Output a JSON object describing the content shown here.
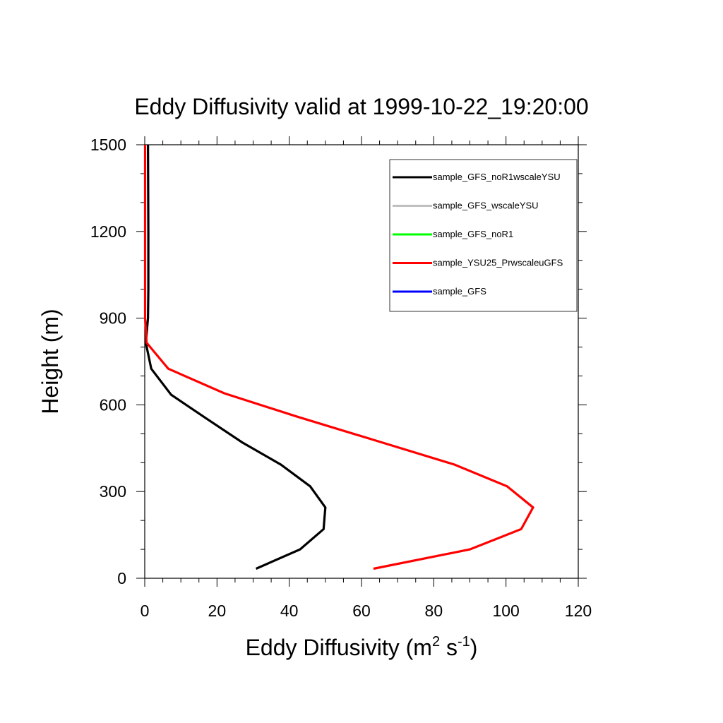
{
  "chart_data": {
    "type": "line",
    "title": "Eddy Diffusivity valid at 1999-10-22_19:20:00",
    "xlabel": "Eddy Diffusivity (m",
    "xlabel_sup1": "2",
    "xlabel_mid": " s",
    "xlabel_sup2": "-1",
    "xlabel_end": ")",
    "ylabel": "Height (m)",
    "xlim": [
      0,
      120
    ],
    "ylim": [
      0,
      1500
    ],
    "x_ticks": [
      0,
      20,
      40,
      60,
      80,
      100,
      120
    ],
    "y_ticks": [
      0,
      300,
      600,
      900,
      1200,
      1500
    ],
    "legend_position": "top-right",
    "series": [
      {
        "name": "sample_GFS_noR1wscaleYSU",
        "color": "#000000",
        "x": [
          30.8,
          43.0,
          49.5,
          50.0,
          45.8,
          37.7,
          27.0,
          17.0,
          7.3,
          1.8,
          0.3,
          0.9,
          1.0,
          1.0,
          0.9
        ],
        "y": [
          33,
          100,
          170,
          245,
          318,
          393,
          470,
          553,
          635,
          725,
          815,
          900,
          1000,
          1200,
          1500
        ]
      },
      {
        "name": "sample_GFS_wscaleYSU",
        "color": "#c0c0c0",
        "x": [],
        "y": []
      },
      {
        "name": "sample_GFS_noR1",
        "color": "#00ff00",
        "x": [],
        "y": []
      },
      {
        "name": "sample_YSU25_PrwscaleuGFS",
        "color": "#ff0000",
        "x": [
          63.3,
          90.0,
          104.2,
          107.5,
          100.3,
          85.8,
          63.0,
          42.0,
          22.0,
          6.5,
          0.5,
          0.1,
          0.1
        ],
        "y": [
          33,
          100,
          170,
          245,
          318,
          393,
          480,
          560,
          640,
          725,
          815,
          900,
          1500
        ]
      },
      {
        "name": "sample_GFS",
        "color": "#0000ff",
        "x": [],
        "y": []
      }
    ]
  }
}
